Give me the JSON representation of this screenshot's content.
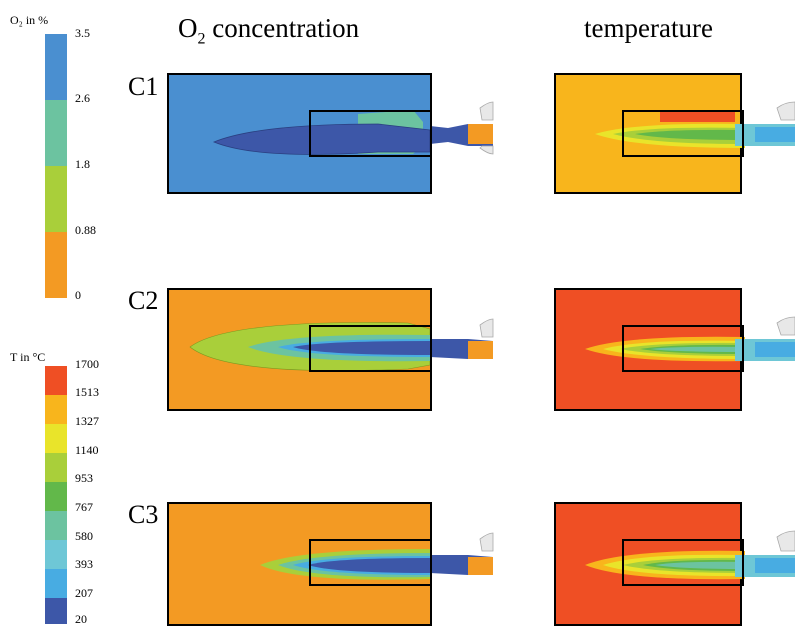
{
  "o2_legend": {
    "title": "O₂ in %",
    "ticks": [
      "3.5",
      "2.6",
      "1.8",
      "0.88",
      "0"
    ],
    "colors": [
      "#4a8fd0",
      "#6cc3a0",
      "#a9cf3a",
      "#f39a23"
    ]
  },
  "t_legend": {
    "title": "T in °C",
    "ticks": [
      "1700",
      "1513",
      "1327",
      "1140",
      "953",
      "767",
      "580",
      "393",
      "207",
      "20"
    ],
    "colors": [
      "#ef4f24",
      "#f8b51c",
      "#e9e42a",
      "#a9cf3a",
      "#62b84a",
      "#6cc3a0",
      "#6ec7d6",
      "#48ace2",
      "#3d57a8"
    ]
  },
  "columns": {
    "o2_title_main": "O",
    "o2_title_sub": "2",
    "o2_title_rest": " concentration",
    "temp_title": "temperature"
  },
  "rows": [
    "C1",
    "C2",
    "C3"
  ],
  "colors": {
    "o2_high": "#4a8fd0",
    "o2_mid": "#6cc3a0",
    "o2_lowmid": "#a9cf3a",
    "o2_low": "#f39a23",
    "o2_core": "#3d57a8",
    "t_1700": "#ef4f24",
    "t_1513": "#f8b51c",
    "t_1327": "#e9e42a",
    "t_1140": "#a9cf3a",
    "t_953": "#62b84a",
    "t_767": "#6cc3a0",
    "t_580": "#6ec7d6",
    "t_393": "#48ace2",
    "t_20": "#3d57a8",
    "burner": "#e8e8e8"
  }
}
